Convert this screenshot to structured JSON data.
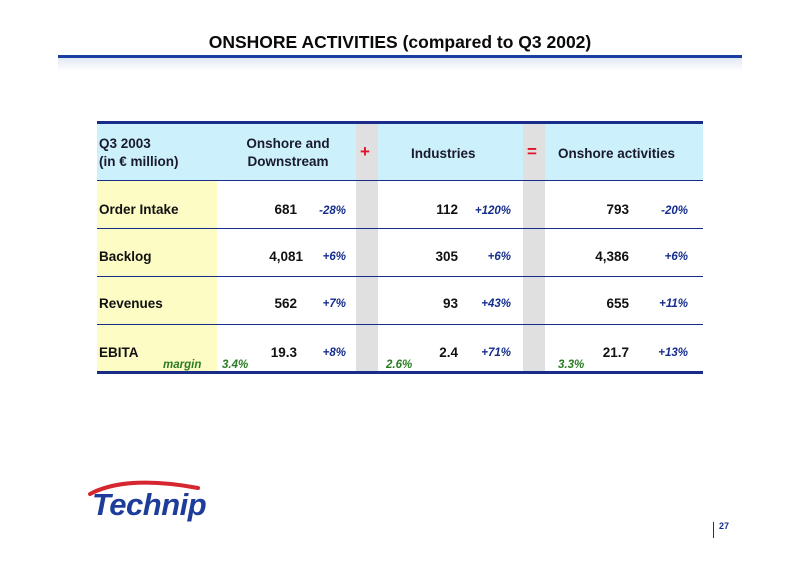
{
  "title": "ONSHORE ACTIVITIES (compared to Q3 2002)",
  "colors": {
    "accent": "#1a3fa0",
    "header_bg": "#ccf0fc",
    "label_bg": "#fcfcc4",
    "operator": "#e0142a",
    "pct": "#142d8c",
    "margin": "#2a7d20"
  },
  "table": {
    "header": {
      "period_line1": "Q3 2003",
      "period_line2": "(in € million)",
      "col1_line1": "Onshore and",
      "col1_line2": "Downstream",
      "plus": "+",
      "col2": "Industries",
      "equals": "=",
      "col3": "Onshore activities"
    },
    "rows": [
      {
        "label": "Order Intake",
        "v1": "681",
        "p1": "-28%",
        "v2": "112",
        "p2": "+120%",
        "v3": "793",
        "p3": "-20%"
      },
      {
        "label": "Backlog",
        "v1": "4,081",
        "p1": "+6%",
        "v2": "305",
        "p2": "+6%",
        "v3": "4,386",
        "p3": "+6%"
      },
      {
        "label": "Revenues",
        "v1": "562",
        "p1": "+7%",
        "v2": "93",
        "p2": "+43%",
        "v3": "655",
        "p3": "+11%"
      },
      {
        "label": "EBITA",
        "v1": "19.3",
        "p1": "+8%",
        "v2": "2.4",
        "p2": "+71%",
        "v3": "21.7",
        "p3": "+13%"
      }
    ],
    "margin": {
      "label": "margin",
      "m1": "3.4%",
      "m2": "2.6%",
      "m3": "3.3%"
    }
  },
  "logo_text": "Technip",
  "page_number": "27"
}
